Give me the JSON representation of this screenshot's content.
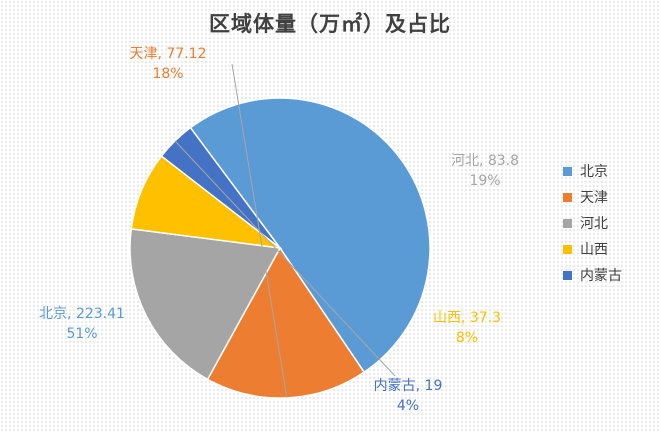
{
  "chart_data": {
    "type": "pie",
    "title": "区域体量（万㎡）及占比",
    "legend_position": "right",
    "slices": [
      {
        "name": "北京",
        "value": 223.41,
        "percent_label": "51%",
        "color": "#5b9bd5"
      },
      {
        "name": "天津",
        "value": 77.12,
        "percent_label": "18%",
        "color": "#ed7d31"
      },
      {
        "name": "河北",
        "value": 83.8,
        "percent_label": "19%",
        "color": "#a5a5a5"
      },
      {
        "name": "山西",
        "value": 37.3,
        "percent_label": "8%",
        "color": "#ffc000"
      },
      {
        "name": "内蒙古",
        "value": 19,
        "percent_label": "4%",
        "color": "#4472c4"
      }
    ]
  }
}
